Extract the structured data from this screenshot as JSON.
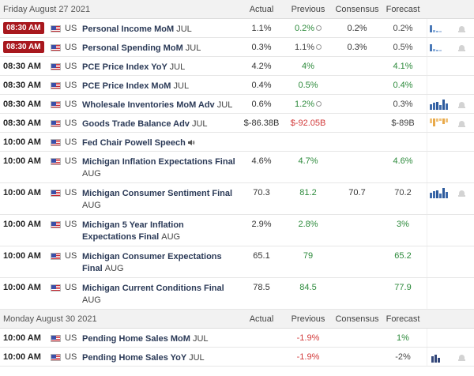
{
  "days": [
    {
      "label": "Friday August 27 2021",
      "columns": {
        "actual": "Actual",
        "previous": "Previous",
        "consensus": "Consensus",
        "forecast": "Forecast"
      },
      "rows": [
        {
          "time": "08:30 AM",
          "highlight": true,
          "country": "US",
          "event": "Personal Income MoM",
          "period": "JUL",
          "actual": "1.1%",
          "previous": "0.2%",
          "previous_color": "green",
          "revised": true,
          "consensus": "0.2%",
          "forecast": "0.2%",
          "forecast_color": "gray",
          "sparkline": "blue-light",
          "alert": true
        },
        {
          "time": "08:30 AM",
          "highlight": true,
          "country": "US",
          "event": "Personal Spending MoM",
          "period": "JUL",
          "actual": "0.3%",
          "previous": "1.1%",
          "previous_color": "gray",
          "revised": true,
          "consensus": "0.3%",
          "forecast": "0.5%",
          "forecast_color": "gray",
          "sparkline": "blue-light",
          "alert": true
        },
        {
          "time": "08:30 AM",
          "highlight": false,
          "country": "US",
          "event": "PCE Price Index YoY",
          "period": "JUL",
          "actual": "4.2%",
          "previous": "4%",
          "previous_color": "green",
          "revised": false,
          "consensus": "",
          "forecast": "4.1%",
          "forecast_color": "green",
          "sparkline": "",
          "alert": false
        },
        {
          "time": "08:30 AM",
          "highlight": false,
          "country": "US",
          "event": "PCE Price Index MoM",
          "period": "JUL",
          "actual": "0.4%",
          "previous": "0.5%",
          "previous_color": "green",
          "revised": false,
          "consensus": "",
          "forecast": "0.4%",
          "forecast_color": "green",
          "sparkline": "",
          "alert": false
        },
        {
          "time": "08:30 AM",
          "highlight": false,
          "country": "US",
          "event": "Wholesale Inventories MoM Adv",
          "period": "JUL",
          "actual": "0.6%",
          "previous": "1.2%",
          "previous_color": "green",
          "revised": true,
          "consensus": "",
          "forecast": "0.3%",
          "forecast_color": "gray",
          "sparkline": "blue",
          "alert": true
        },
        {
          "time": "08:30 AM",
          "highlight": false,
          "country": "US",
          "event": "Goods Trade Balance Adv",
          "period": "JUL",
          "actual": "$-86.38B",
          "previous": "$-92.05B",
          "previous_color": "red",
          "revised": false,
          "consensus": "",
          "forecast": "$-89B",
          "forecast_color": "gray",
          "sparkline": "orange",
          "alert": true
        },
        {
          "time": "10:00 AM",
          "highlight": false,
          "country": "US",
          "event": "Fed Chair Powell Speech",
          "period": "",
          "speaker": true,
          "actual": "",
          "previous": "",
          "previous_color": "gray",
          "revised": false,
          "consensus": "",
          "forecast": "",
          "forecast_color": "gray",
          "sparkline": "",
          "alert": false
        },
        {
          "time": "10:00 AM",
          "highlight": false,
          "country": "US",
          "event": "Michigan Inflation Expectations Final",
          "period": "AUG",
          "actual": "4.6%",
          "previous": "4.7%",
          "previous_color": "green",
          "revised": false,
          "consensus": "",
          "forecast": "4.6%",
          "forecast_color": "green",
          "sparkline": "",
          "alert": false
        },
        {
          "time": "10:00 AM",
          "highlight": false,
          "country": "US",
          "event": "Michigan Consumer Sentiment Final",
          "period": "AUG",
          "actual": "70.3",
          "previous": "81.2",
          "previous_color": "green",
          "revised": false,
          "consensus": "70.7",
          "forecast": "70.2",
          "forecast_color": "gray",
          "sparkline": "blue",
          "alert": true
        },
        {
          "time": "10:00 AM",
          "highlight": false,
          "country": "US",
          "event": "Michigan 5 Year Inflation Expectations Final",
          "period": "AUG",
          "actual": "2.9%",
          "previous": "2.8%",
          "previous_color": "green",
          "revised": false,
          "consensus": "",
          "forecast": "3%",
          "forecast_color": "green",
          "sparkline": "",
          "alert": false
        },
        {
          "time": "10:00 AM",
          "highlight": false,
          "country": "US",
          "event": "Michigan Consumer Expectations Final",
          "period": "AUG",
          "actual": "65.1",
          "previous": "79",
          "previous_color": "green",
          "revised": false,
          "consensus": "",
          "forecast": "65.2",
          "forecast_color": "green",
          "sparkline": "",
          "alert": false
        },
        {
          "time": "10:00 AM",
          "highlight": false,
          "country": "US",
          "event": "Michigan Current Conditions Final",
          "period": "AUG",
          "actual": "78.5",
          "previous": "84.5",
          "previous_color": "green",
          "revised": false,
          "consensus": "",
          "forecast": "77.9",
          "forecast_color": "green",
          "sparkline": "",
          "alert": false
        }
      ]
    },
    {
      "label": "Monday August 30 2021",
      "columns": {
        "actual": "Actual",
        "previous": "Previous",
        "consensus": "Consensus",
        "forecast": "Forecast"
      },
      "rows": [
        {
          "time": "10:00 AM",
          "highlight": false,
          "country": "US",
          "event": "Pending Home Sales MoM",
          "period": "JUL",
          "actual": "",
          "previous": "-1.9%",
          "previous_color": "red",
          "revised": false,
          "consensus": "",
          "forecast": "1%",
          "forecast_color": "green",
          "sparkline": "",
          "alert": false
        },
        {
          "time": "10:00 AM",
          "highlight": false,
          "country": "US",
          "event": "Pending Home Sales YoY",
          "period": "JUL",
          "actual": "",
          "previous": "-1.9%",
          "previous_color": "red",
          "revised": false,
          "consensus": "",
          "forecast": "-2%",
          "forecast_color": "gray",
          "sparkline": "navy",
          "alert": true
        }
      ]
    }
  ],
  "colors": {
    "highlight_bg": "#a8181e",
    "positive": "#2c8a3b",
    "negative": "#d23a3a",
    "event_text": "#2b3a57"
  }
}
